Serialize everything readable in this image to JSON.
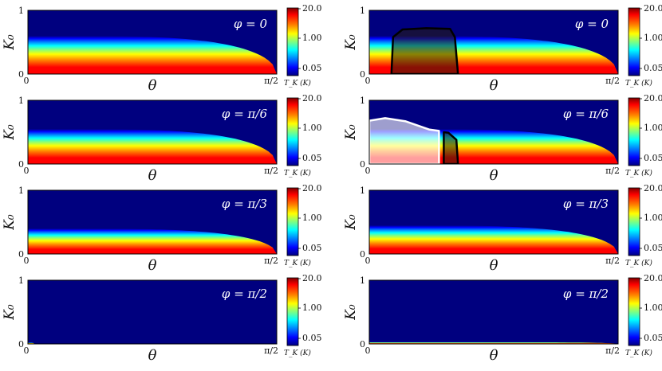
{
  "figure": {
    "colormap": [
      "#00007f",
      "#0000ff",
      "#0080ff",
      "#00ffff",
      "#80ff80",
      "#ffff00",
      "#ff8000",
      "#ff0000",
      "#7f0000"
    ],
    "background_color": "#00007f"
  },
  "chart_data": [
    {
      "type": "heatmap",
      "column": "left",
      "row": 0,
      "phi_label": "φ = 0",
      "xlabel": "θ",
      "ylabel": "K₀",
      "x_ticks": [
        "0",
        "π/2"
      ],
      "y_ticks": [
        "0",
        "1"
      ],
      "xlim": [
        0,
        1.5708
      ],
      "ylim": [
        0,
        1
      ],
      "band_peak_K0": 0.6,
      "band_endpoint_theta": 1.5708,
      "colorbar": {
        "ticks": [
          "20.0",
          "1.00",
          "0.05"
        ],
        "label": "T_K (K)"
      }
    },
    {
      "type": "heatmap",
      "column": "left",
      "row": 1,
      "phi_label": "φ = π/6",
      "xlabel": "θ",
      "ylabel": "K₀",
      "x_ticks": [
        "0",
        "π/2"
      ],
      "y_ticks": [
        "0",
        "1"
      ],
      "xlim": [
        0,
        1.5708
      ],
      "ylim": [
        0,
        1
      ],
      "band_peak_K0": 0.55,
      "band_endpoint_theta": 1.5708,
      "colorbar": {
        "ticks": [
          "20.0",
          "1.00",
          "0.05"
        ],
        "label": "T_K (K)"
      }
    },
    {
      "type": "heatmap",
      "column": "left",
      "row": 2,
      "phi_label": "φ = π/3",
      "xlabel": "θ",
      "ylabel": "K₀",
      "x_ticks": [
        "0",
        "π/2"
      ],
      "y_ticks": [
        "0",
        "1"
      ],
      "xlim": [
        0,
        1.5708
      ],
      "ylim": [
        0,
        1
      ],
      "band_peak_K0": 0.4,
      "band_endpoint_theta": 1.5708,
      "colorbar": {
        "ticks": [
          "20.0",
          "1.00",
          "0.05"
        ],
        "label": "T_K (K)"
      }
    },
    {
      "type": "heatmap",
      "column": "left",
      "row": 3,
      "phi_label": "φ = π/2",
      "xlabel": "θ",
      "ylabel": "K₀",
      "x_ticks": [
        "0",
        "π/2"
      ],
      "y_ticks": [
        "0",
        "1"
      ],
      "xlim": [
        0,
        1.5708
      ],
      "ylim": [
        0,
        1
      ],
      "band_peak_K0": 0.02,
      "band_endpoint_theta": 0.04,
      "colorbar": {
        "ticks": [
          "20.0",
          "1.00",
          "0.05"
        ],
        "label": "T_K (K)"
      }
    },
    {
      "type": "heatmap",
      "column": "right",
      "row": 0,
      "phi_label": "φ = 0",
      "xlabel": "θ",
      "ylabel": "K₀",
      "x_ticks": [
        "0",
        "π/2"
      ],
      "y_ticks": [
        "0",
        "1"
      ],
      "xlim": [
        0,
        1.5708
      ],
      "ylim": [
        0,
        1
      ],
      "band_peak_K0": 0.6,
      "band_endpoint_theta": 1.5708,
      "colorbar": {
        "ticks": [
          "20.0",
          "1.00",
          "0.05"
        ],
        "label": "T_K (K)"
      },
      "overlays": [
        {
          "fill": "dark",
          "outline": "#000000",
          "points": [
            [
              0.14,
              0
            ],
            [
              0.15,
              0.58
            ],
            [
              0.21,
              0.7
            ],
            [
              0.36,
              0.72
            ],
            [
              0.51,
              0.71
            ],
            [
              0.54,
              0.58
            ],
            [
              0.56,
              0
            ]
          ]
        }
      ]
    },
    {
      "type": "heatmap",
      "column": "right",
      "row": 1,
      "phi_label": "φ = π/6",
      "xlabel": "θ",
      "ylabel": "K₀",
      "x_ticks": [
        "0",
        "π/2"
      ],
      "y_ticks": [
        "0",
        "1"
      ],
      "xlim": [
        0,
        1.5708
      ],
      "ylim": [
        0,
        1
      ],
      "band_peak_K0": 0.55,
      "band_endpoint_theta": 1.5708,
      "colorbar": {
        "ticks": [
          "20.0",
          "1.00",
          "0.05"
        ],
        "label": "T_K (K)"
      },
      "overlays": [
        {
          "fill": "light",
          "outline": "#ffffff",
          "points": [
            [
              0,
              0
            ],
            [
              0,
              0.68
            ],
            [
              0.1,
              0.72
            ],
            [
              0.23,
              0.67
            ],
            [
              0.38,
              0.54
            ],
            [
              0.44,
              0.52
            ],
            [
              0.44,
              0
            ]
          ]
        },
        {
          "fill": "dark",
          "outline": "#000000",
          "points": [
            [
              0.47,
              0
            ],
            [
              0.47,
              0.5
            ],
            [
              0.5,
              0.49
            ],
            [
              0.55,
              0.38
            ],
            [
              0.56,
              0
            ]
          ]
        }
      ]
    },
    {
      "type": "heatmap",
      "column": "right",
      "row": 2,
      "phi_label": "φ = π/3",
      "xlabel": "θ",
      "ylabel": "K₀",
      "x_ticks": [
        "0",
        "π/2"
      ],
      "y_ticks": [
        "0",
        "1"
      ],
      "xlim": [
        0,
        1.5708
      ],
      "ylim": [
        0,
        1
      ],
      "band_peak_K0": 0.45,
      "band_endpoint_theta": 1.5708,
      "colorbar": {
        "ticks": [
          "20.0",
          "1.00",
          "0.05"
        ],
        "label": "T_K (K)"
      }
    },
    {
      "type": "heatmap",
      "column": "right",
      "row": 3,
      "phi_label": "φ = π/2",
      "xlabel": "θ",
      "ylabel": "K₀",
      "x_ticks": [
        "0",
        "π/2"
      ],
      "y_ticks": [
        "0",
        "1"
      ],
      "xlim": [
        0,
        1.5708
      ],
      "ylim": [
        0,
        1
      ],
      "band_peak_K0": 0.03,
      "band_endpoint_theta": 1.5708,
      "colorbar": {
        "ticks": [
          "20.0",
          "1.00",
          "0.05"
        ],
        "label": "T_K (K)"
      }
    }
  ]
}
